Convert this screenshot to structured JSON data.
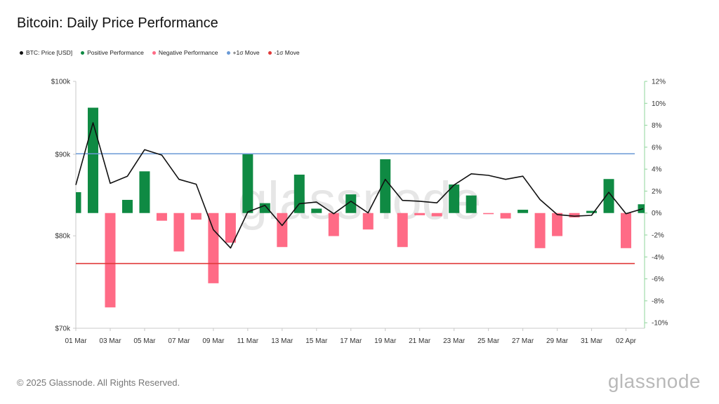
{
  "title": "Bitcoin: Daily Price Performance",
  "legend": [
    {
      "label": "BTC: Price [USD]",
      "color": "#111111"
    },
    {
      "label": "Positive Performance",
      "color": "#0f8a43"
    },
    {
      "label": "Negative Performance",
      "color": "#ff6b86"
    },
    {
      "label": "+1σ Move",
      "color": "#6a9ad6"
    },
    {
      "label": "-1σ Move",
      "color": "#e03a3a"
    }
  ],
  "footer": "© 2025 Glassnode. All Rights Reserved.",
  "brand": "glassnode",
  "watermark": "glassnode",
  "chart_data": {
    "type": "bar",
    "x_tick_labels": [
      "01 Mar",
      "03 Mar",
      "05 Mar",
      "07 Mar",
      "09 Mar",
      "11 Mar",
      "13 Mar",
      "15 Mar",
      "17 Mar",
      "19 Mar",
      "21 Mar",
      "23 Mar",
      "25 Mar",
      "27 Mar",
      "29 Mar",
      "31 Mar",
      "02 Apr"
    ],
    "dates": [
      "01 Mar",
      "02 Mar",
      "03 Mar",
      "04 Mar",
      "05 Mar",
      "06 Mar",
      "07 Mar",
      "08 Mar",
      "09 Mar",
      "10 Mar",
      "11 Mar",
      "12 Mar",
      "13 Mar",
      "14 Mar",
      "15 Mar",
      "16 Mar",
      "17 Mar",
      "18 Mar",
      "19 Mar",
      "20 Mar",
      "21 Mar",
      "22 Mar",
      "23 Mar",
      "24 Mar",
      "25 Mar",
      "26 Mar",
      "27 Mar",
      "28 Mar",
      "29 Mar",
      "30 Mar",
      "31 Mar",
      "01 Apr",
      "02 Apr",
      "03 Apr"
    ],
    "price_axis": {
      "ticks": [
        70000,
        80000,
        90000,
        100000
      ],
      "tick_labels": [
        "$70k",
        "$80k",
        "$90k",
        "$100k"
      ],
      "scale": "log",
      "range": [
        70000,
        100000
      ]
    },
    "perf_axis": {
      "ticks": [
        -10,
        -8,
        -6,
        -4,
        -2,
        0,
        2,
        4,
        6,
        8,
        10,
        12
      ],
      "tick_labels": [
        "-10%",
        "-8%",
        "-6%",
        "-4%",
        "-2%",
        "0%",
        "2%",
        "4%",
        "6%",
        "8%",
        "10%",
        "12%"
      ],
      "range": [
        -10.5,
        12
      ]
    },
    "series": [
      {
        "name": "BTC: Price [USD]",
        "axis": "left",
        "style": "line",
        "color": "#111111",
        "values": [
          86100,
          94200,
          86300,
          87200,
          90600,
          89900,
          86800,
          86200,
          80700,
          78600,
          82800,
          83600,
          81200,
          83800,
          84000,
          82600,
          84100,
          82700,
          86800,
          84200,
          84100,
          83900,
          86100,
          87500,
          87300,
          86800,
          87200,
          84300,
          82500,
          82300,
          82400,
          85200,
          82600,
          83200
        ]
      },
      {
        "name": "Positive Performance / Negative Performance",
        "axis": "right",
        "style": "bar",
        "values": [
          1.9,
          9.6,
          -8.6,
          1.2,
          3.8,
          -0.7,
          -3.5,
          -0.6,
          -6.4,
          -2.7,
          5.4,
          0.9,
          -3.1,
          3.5,
          0.4,
          -2.1,
          1.7,
          -1.5,
          4.9,
          -3.1,
          -0.2,
          -0.3,
          2.6,
          1.6,
          -0.1,
          -0.5,
          0.3,
          -3.2,
          -2.1,
          -0.4,
          0.2,
          3.1,
          -3.2,
          0.8
        ]
      },
      {
        "name": "+1σ Move",
        "axis": "right",
        "style": "hline",
        "color": "#6a9ad6",
        "value": 5.4
      },
      {
        "name": "-1σ Move",
        "axis": "right",
        "style": "hline",
        "color": "#e03a3a",
        "value": -4.6
      }
    ],
    "colors": {
      "positive": "#0f8a43",
      "negative": "#ff6b86",
      "axis": "#c8c8c8",
      "right_axis": "#8fd49b"
    },
    "grid": false,
    "legend_position": "top-left"
  }
}
